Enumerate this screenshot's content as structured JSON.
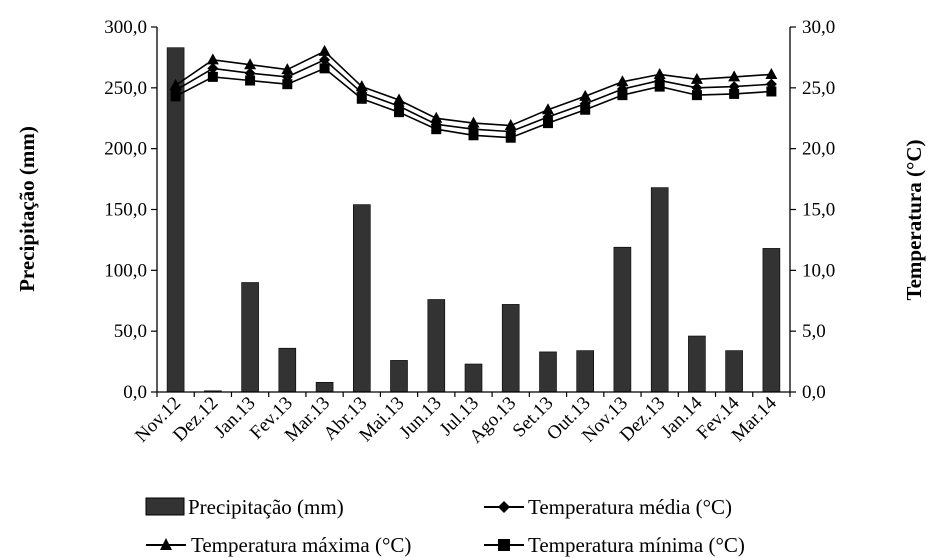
{
  "chart_data": {
    "type": "bar",
    "categories": [
      "Nov.12",
      "Dez.12",
      "Jan.13",
      "Fev.13",
      "Mar.13",
      "Abr.13",
      "Mai.13",
      "Jun.13",
      "Jul.13",
      "Ago.13",
      "Set.13",
      "Out.13",
      "Nov.13",
      "Dez.13",
      "Jan.14",
      "Fev.14",
      "Mar.14"
    ],
    "ylabel": "Precipitação (mm)",
    "y2label": "Temperatura (°C)",
    "ylim": [
      0,
      300
    ],
    "y2lim": [
      0,
      30
    ],
    "yticks": [
      "0,0",
      "50,0",
      "100,0",
      "150,0",
      "200,0",
      "250,0",
      "300,0"
    ],
    "y2ticks": [
      "0,0",
      "5,0",
      "10,0",
      "15,0",
      "20,0",
      "25,0",
      "30,0"
    ],
    "grid": false,
    "legend_position": "bottom",
    "bar_series": {
      "name": "Precipitação (mm)",
      "values": [
        283,
        1,
        90,
        36,
        8,
        154,
        26,
        76,
        23,
        72,
        33,
        34,
        119,
        168,
        46,
        34,
        118
      ],
      "color": "#333333"
    },
    "line_series": [
      {
        "name": "Temperatura média (°C)",
        "marker": "diamond",
        "values": [
          24.8,
          26.6,
          26.2,
          25.9,
          27.3,
          24.6,
          23.5,
          22.0,
          21.6,
          21.4,
          22.6,
          23.7,
          24.9,
          25.6,
          25.0,
          25.1,
          25.3
        ],
        "color": "#000000"
      },
      {
        "name": "Temperatura máxima (°C)",
        "marker": "triangle",
        "values": [
          25.2,
          27.3,
          26.9,
          26.5,
          28.0,
          25.1,
          24.0,
          22.5,
          22.1,
          21.9,
          23.2,
          24.3,
          25.5,
          26.1,
          25.7,
          25.9,
          26.1
        ],
        "color": "#000000"
      },
      {
        "name": "Temperatura mínima (°C)",
        "marker": "square",
        "values": [
          24.3,
          25.9,
          25.6,
          25.3,
          26.6,
          24.1,
          23.0,
          21.6,
          21.1,
          20.9,
          22.1,
          23.2,
          24.4,
          25.1,
          24.4,
          24.5,
          24.7
        ],
        "color": "#000000"
      }
    ]
  }
}
